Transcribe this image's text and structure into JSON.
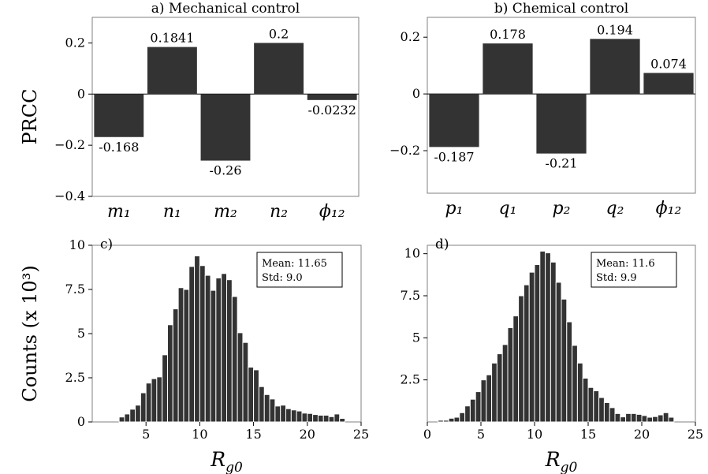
{
  "ylabel_top": "PRCC",
  "ylabel_bottom": "Counts (x 10³)",
  "chart_data": [
    {
      "type": "bar",
      "title": "a) Mechanical control",
      "categories": [
        "m₁",
        "n₁",
        "m₂",
        "n₂",
        "ϕ₁₂"
      ],
      "values": [
        -0.168,
        0.1841,
        -0.26,
        0.2,
        -0.0232
      ],
      "value_labels": [
        "-0.168",
        "0.1841",
        "-0.26",
        "0.2",
        "-0.0232"
      ],
      "ylabel": "PRCC",
      "ylim": [
        -0.4,
        0.3
      ],
      "yticks": [
        -0.4,
        -0.2,
        0,
        0.2
      ],
      "ytick_labels": [
        "−0.4",
        "−0.2",
        "0",
        "0.2"
      ]
    },
    {
      "type": "bar",
      "title": "b) Chemical control",
      "categories": [
        "p₁",
        "q₁",
        "p₂",
        "q₂",
        "ϕ₁₂"
      ],
      "values": [
        -0.187,
        0.178,
        -0.21,
        0.194,
        0.074
      ],
      "value_labels": [
        "-0.187",
        "0.178",
        "-0.21",
        "0.194",
        "0.074"
      ],
      "ylim": [
        -0.35,
        0.27
      ],
      "yticks": [
        -0.2,
        0,
        0.2
      ],
      "ytick_labels": [
        "−0.2",
        "0",
        "0.2"
      ]
    },
    {
      "type": "histogram",
      "title": "c)",
      "xlabel": "R_g0",
      "xlabel_main": "R",
      "xlabel_sub": "g0",
      "ylabel": "Counts (x 10³)",
      "xlim": [
        0,
        25
      ],
      "ylim": [
        0,
        10
      ],
      "xticks": [
        5,
        10,
        15,
        20,
        25
      ],
      "xtick_labels": [
        "5",
        "10",
        "15",
        "20",
        "25"
      ],
      "yticks": [
        0,
        2.5,
        5,
        7.5,
        10
      ],
      "ytick_labels": [
        "0",
        "2.5",
        "5",
        "7.5",
        "10"
      ],
      "bin_start": 2.5,
      "bin_width": 0.5,
      "values": [
        0.28,
        0.45,
        0.72,
        0.95,
        1.65,
        2.2,
        2.45,
        2.55,
        3.8,
        5.5,
        6.4,
        7.6,
        7.5,
        8.8,
        9.4,
        8.85,
        8.3,
        7.45,
        8.15,
        8.4,
        8.05,
        7.1,
        5.05,
        4.5,
        3.1,
        2.95,
        2.0,
        1.55,
        1.3,
        0.9,
        0.95,
        0.75,
        0.68,
        0.62,
        0.5,
        0.48,
        0.42,
        0.38,
        0.38,
        0.3,
        0.45,
        0.2
      ],
      "stats": {
        "mean_label": "Mean: 11.65",
        "std_label": "Std: 9.0"
      }
    },
    {
      "type": "histogram",
      "title": "d)",
      "xlabel": "R_g0",
      "xlabel_main": "R",
      "xlabel_sub": "g0",
      "xlim": [
        0,
        25
      ],
      "ylim": [
        0,
        10.5
      ],
      "xticks": [
        0,
        5,
        10,
        15,
        20,
        25
      ],
      "xtick_labels": [
        "0",
        "5",
        "10",
        "15",
        "20",
        "25"
      ],
      "yticks": [
        2.5,
        5,
        7.5,
        10
      ],
      "ytick_labels": [
        "2.5",
        "5",
        "7.5",
        "10"
      ],
      "bin_start": 1.0,
      "bin_width": 0.5,
      "values": [
        0.1,
        0.1,
        0.22,
        0.28,
        0.55,
        0.95,
        1.35,
        1.8,
        2.5,
        2.8,
        3.5,
        4.05,
        4.6,
        5.6,
        6.3,
        7.5,
        8.15,
        8.9,
        9.35,
        10.15,
        10.05,
        9.5,
        8.3,
        7.3,
        5.95,
        4.55,
        3.5,
        2.6,
        2.05,
        1.85,
        1.45,
        1.15,
        0.85,
        0.5,
        0.3,
        0.5,
        0.5,
        0.45,
        0.38,
        0.28,
        0.32,
        0.42,
        0.55,
        0.28
      ],
      "stats": {
        "mean_label": "Mean: 11.6",
        "std_label": "Std: 9.9"
      }
    }
  ]
}
